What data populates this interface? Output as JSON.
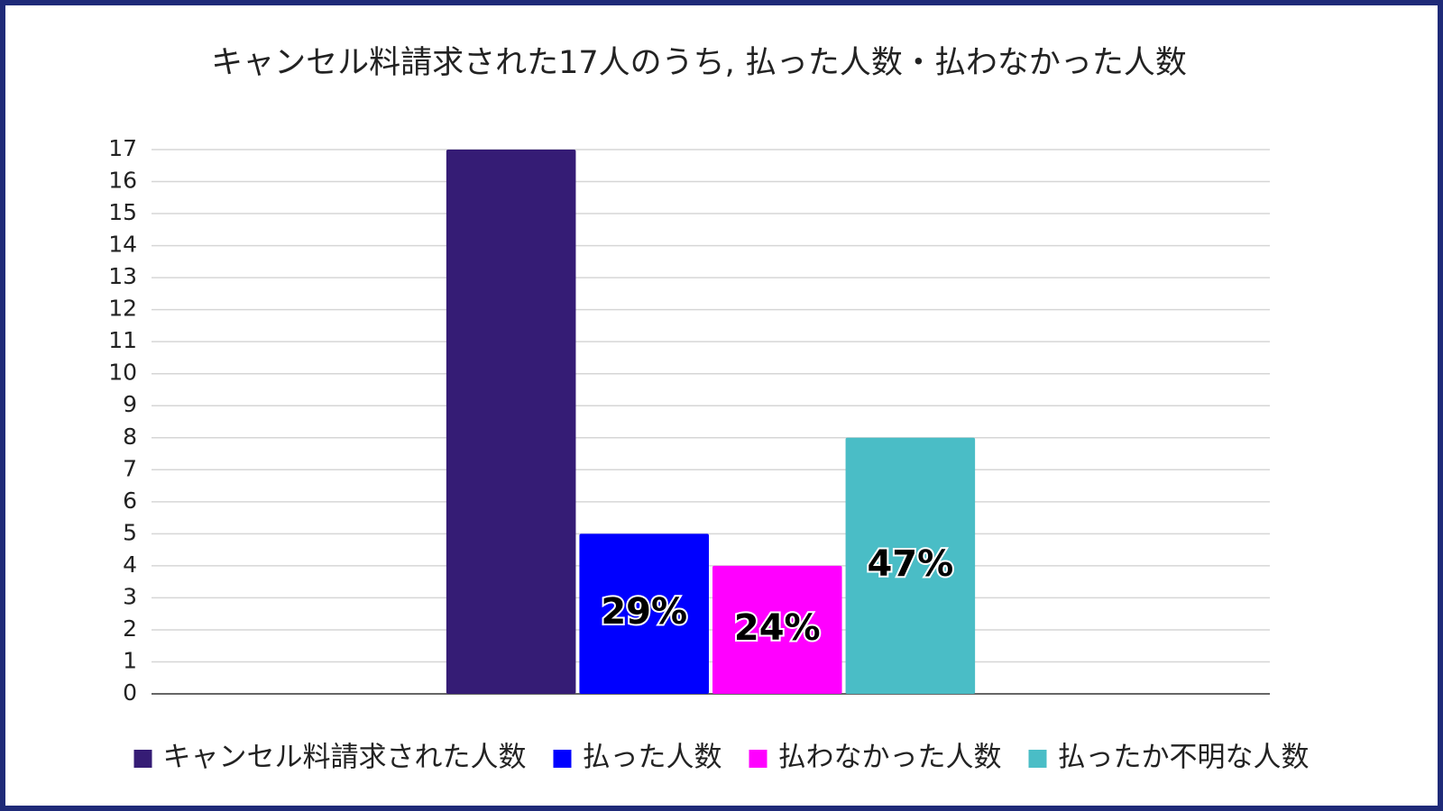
{
  "chart_data": {
    "type": "bar",
    "title": "キャンセル料請求された17人のうち, 払った人数・払わなかった人数",
    "categories": [
      null
    ],
    "series": [
      {
        "name": "キャンセル料請求された人数",
        "color": "#351c75",
        "values": [
          17
        ]
      },
      {
        "name": "払った人数",
        "color": "#0000ff",
        "values": [
          5
        ]
      },
      {
        "name": "払わなかった人数",
        "color": "#ff00ff",
        "values": [
          4
        ]
      },
      {
        "name": "払ったか不明な人数",
        "color": "#4abdc6",
        "values": [
          8
        ]
      }
    ],
    "annotations": [
      "29%",
      "24%",
      "47%"
    ],
    "ylim": [
      0,
      17
    ],
    "yticks": [
      0,
      1,
      2,
      3,
      4,
      5,
      6,
      7,
      8,
      9,
      10,
      11,
      12,
      13,
      14,
      15,
      16,
      17
    ],
    "grid": true,
    "legend": "bottom"
  }
}
